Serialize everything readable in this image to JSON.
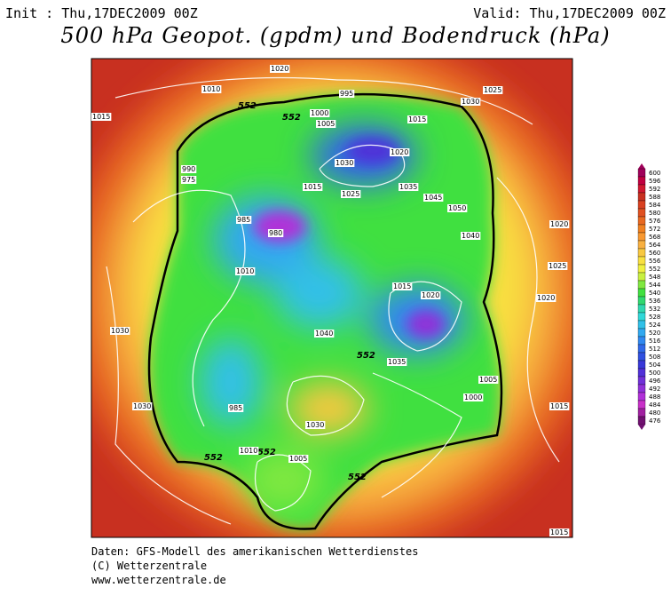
{
  "header": {
    "init": "Init : Thu,17DEC2009 00Z",
    "valid": "Valid: Thu,17DEC2009 00Z",
    "title": "500 hPa Geopot. (gpdm) und Bodendruck (hPa)"
  },
  "footer": [
    "Daten: GFS-Modell des amerikanischen Wetterdienstes",
    "(C) Wetterzentrale",
    "www.wetterzentrale.de"
  ],
  "colorbar": {
    "levels": [
      600,
      596,
      592,
      588,
      584,
      580,
      576,
      572,
      568,
      564,
      560,
      556,
      552,
      548,
      544,
      540,
      536,
      532,
      528,
      524,
      520,
      516,
      512,
      508,
      504,
      500,
      496,
      492,
      488,
      484,
      480,
      476
    ],
    "colors": [
      "#a0005a",
      "#c00040",
      "#d01830",
      "#c83020",
      "#d84020",
      "#e05020",
      "#e86820",
      "#f08020",
      "#f89830",
      "#f8b040",
      "#f8c840",
      "#f8e040",
      "#f0f040",
      "#c8f040",
      "#80e840",
      "#40e040",
      "#30d870",
      "#30d8b0",
      "#30d8d8",
      "#30c0e8",
      "#30a8f0",
      "#3088f0",
      "#3068e8",
      "#3050e0",
      "#3838d8",
      "#5030d8",
      "#7030d8",
      "#9030d8",
      "#b030d8",
      "#c830c8",
      "#a020a0",
      "#701070"
    ]
  },
  "map": {
    "contour_labels": [
      "552",
      "552",
      "552",
      "552",
      "552",
      "552"
    ],
    "isobar_labels": [
      "1020",
      "1010",
      "1015",
      "995",
      "1000",
      "1005",
      "1015",
      "1030",
      "1025",
      "990",
      "975",
      "985",
      "980",
      "1020",
      "1025",
      "1015",
      "1030",
      "1045",
      "1040",
      "1035",
      "1050",
      "1020",
      "1010",
      "1030",
      "1015",
      "1000",
      "985",
      "1005",
      "1010",
      "1030",
      "1035",
      "1020",
      "1015",
      "1005",
      "1040",
      "1020",
      "1025",
      "1030",
      "1015"
    ]
  }
}
